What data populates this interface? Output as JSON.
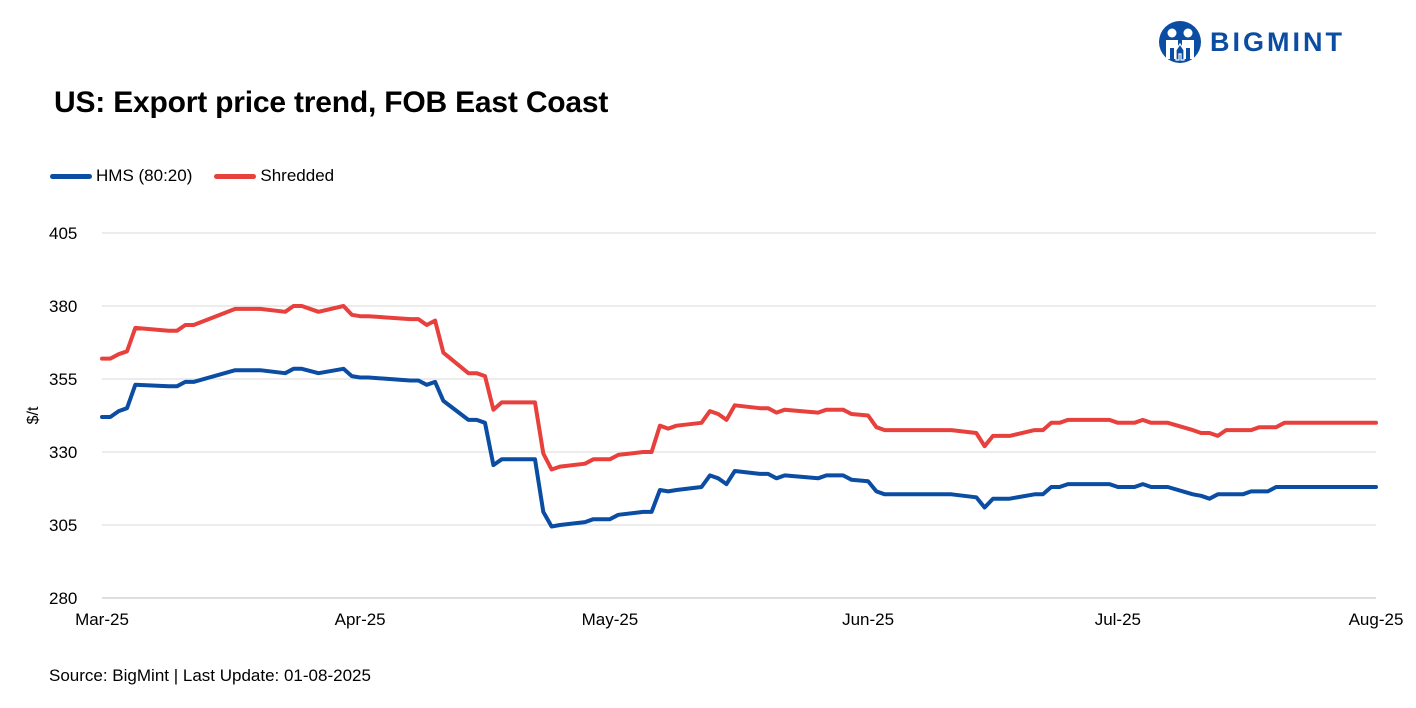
{
  "brand": {
    "name": "BIGMINT",
    "logo_icon": "bigmint-people-logo-icon",
    "color": "#0a4da2"
  },
  "title": "US: Export price trend, FOB East Coast",
  "source": "Source: BigMint | Last Update: 01-08-2025",
  "chart_data": {
    "type": "line",
    "title": "US: Export price trend, FOB East Coast",
    "xlabel": "",
    "ylabel": "$/t",
    "ylim": [
      280,
      405
    ],
    "yticks": [
      280,
      305,
      330,
      355,
      380,
      405
    ],
    "xlim": [
      "2025-03-01",
      "2025-08-01"
    ],
    "xticks": [
      {
        "date": "2025-03-01",
        "label": "Mar-25"
      },
      {
        "date": "2025-04-01",
        "label": "Apr-25"
      },
      {
        "date": "2025-05-01",
        "label": "May-25"
      },
      {
        "date": "2025-06-01",
        "label": "Jun-25"
      },
      {
        "date": "2025-07-01",
        "label": "Jul-25"
      },
      {
        "date": "2025-08-01",
        "label": "Aug-25"
      }
    ],
    "grid": true,
    "legend_position": "top-left",
    "series": [
      {
        "name": "HMS (80:20)",
        "color": "#0a4da2",
        "points": [
          [
            "2025-03-01",
            342
          ],
          [
            "2025-03-02",
            342
          ],
          [
            "2025-03-03",
            344
          ],
          [
            "2025-03-04",
            345
          ],
          [
            "2025-03-05",
            353
          ],
          [
            "2025-03-09",
            352.5
          ],
          [
            "2025-03-10",
            352.5
          ],
          [
            "2025-03-11",
            354
          ],
          [
            "2025-03-12",
            354
          ],
          [
            "2025-03-17",
            358
          ],
          [
            "2025-03-20",
            358
          ],
          [
            "2025-03-23",
            357
          ],
          [
            "2025-03-24",
            358.5
          ],
          [
            "2025-03-25",
            358.5
          ],
          [
            "2025-03-27",
            357
          ],
          [
            "2025-03-30",
            358.5
          ],
          [
            "2025-03-31",
            356
          ],
          [
            "2025-04-01",
            355.5
          ],
          [
            "2025-04-02",
            355.5
          ],
          [
            "2025-04-07",
            354.5
          ],
          [
            "2025-04-08",
            354.5
          ],
          [
            "2025-04-09",
            353
          ],
          [
            "2025-04-10",
            354
          ],
          [
            "2025-04-11",
            347.5
          ],
          [
            "2025-04-14",
            341
          ],
          [
            "2025-04-15",
            341
          ],
          [
            "2025-04-16",
            340
          ],
          [
            "2025-04-17",
            325.5
          ],
          [
            "2025-04-18",
            327.5
          ],
          [
            "2025-04-22",
            327.5
          ],
          [
            "2025-04-23",
            309.5
          ],
          [
            "2025-04-24",
            304.5
          ],
          [
            "2025-04-25",
            305
          ],
          [
            "2025-04-28",
            306
          ],
          [
            "2025-04-29",
            307
          ],
          [
            "2025-05-01",
            307
          ],
          [
            "2025-05-02",
            308.5
          ],
          [
            "2025-05-05",
            309.5
          ],
          [
            "2025-05-06",
            309.5
          ],
          [
            "2025-05-07",
            317
          ],
          [
            "2025-05-08",
            316.5
          ],
          [
            "2025-05-09",
            317
          ],
          [
            "2025-05-12",
            318
          ],
          [
            "2025-05-13",
            322
          ],
          [
            "2025-05-14",
            321
          ],
          [
            "2025-05-15",
            319
          ],
          [
            "2025-05-16",
            323.5
          ],
          [
            "2025-05-19",
            322.5
          ],
          [
            "2025-05-20",
            322.5
          ],
          [
            "2025-05-21",
            321
          ],
          [
            "2025-05-22",
            322
          ],
          [
            "2025-05-26",
            321
          ],
          [
            "2025-05-27",
            322
          ],
          [
            "2025-05-29",
            322
          ],
          [
            "2025-05-30",
            320.5
          ],
          [
            "2025-06-01",
            320
          ],
          [
            "2025-06-02",
            316.5
          ],
          [
            "2025-06-03",
            315.5
          ],
          [
            "2025-06-11",
            315.5
          ],
          [
            "2025-06-14",
            314.5
          ],
          [
            "2025-06-15",
            311
          ],
          [
            "2025-06-16",
            314
          ],
          [
            "2025-06-18",
            314
          ],
          [
            "2025-06-21",
            315.5
          ],
          [
            "2025-06-22",
            315.5
          ],
          [
            "2025-06-23",
            318
          ],
          [
            "2025-06-24",
            318
          ],
          [
            "2025-06-25",
            319
          ],
          [
            "2025-06-30",
            319
          ],
          [
            "2025-07-01",
            318
          ],
          [
            "2025-07-03",
            318
          ],
          [
            "2025-07-04",
            319
          ],
          [
            "2025-07-05",
            318
          ],
          [
            "2025-07-07",
            318
          ],
          [
            "2025-07-10",
            315.5
          ],
          [
            "2025-07-11",
            315
          ],
          [
            "2025-07-12",
            314
          ],
          [
            "2025-07-13",
            315.5
          ],
          [
            "2025-07-16",
            315.5
          ],
          [
            "2025-07-17",
            316.5
          ],
          [
            "2025-07-19",
            316.5
          ],
          [
            "2025-07-20",
            318
          ],
          [
            "2025-08-01",
            318
          ]
        ]
      },
      {
        "name": "Shredded",
        "color": "#e8403c",
        "points": [
          [
            "2025-03-01",
            362
          ],
          [
            "2025-03-02",
            362
          ],
          [
            "2025-03-03",
            363.5
          ],
          [
            "2025-03-04",
            364.5
          ],
          [
            "2025-03-05",
            372.5
          ],
          [
            "2025-03-09",
            371.5
          ],
          [
            "2025-03-10",
            371.5
          ],
          [
            "2025-03-11",
            373.5
          ],
          [
            "2025-03-12",
            373.5
          ],
          [
            "2025-03-17",
            379
          ],
          [
            "2025-03-20",
            379
          ],
          [
            "2025-03-23",
            378
          ],
          [
            "2025-03-24",
            380
          ],
          [
            "2025-03-25",
            380
          ],
          [
            "2025-03-27",
            378
          ],
          [
            "2025-03-30",
            380
          ],
          [
            "2025-03-31",
            377
          ],
          [
            "2025-04-01",
            376.5
          ],
          [
            "2025-04-02",
            376.5
          ],
          [
            "2025-04-07",
            375.5
          ],
          [
            "2025-04-08",
            375.5
          ],
          [
            "2025-04-09",
            373.5
          ],
          [
            "2025-04-10",
            375
          ],
          [
            "2025-04-11",
            364
          ],
          [
            "2025-04-14",
            357
          ],
          [
            "2025-04-15",
            357
          ],
          [
            "2025-04-16",
            356
          ],
          [
            "2025-04-17",
            344.5
          ],
          [
            "2025-04-18",
            347
          ],
          [
            "2025-04-22",
            347
          ],
          [
            "2025-04-23",
            329.5
          ],
          [
            "2025-04-24",
            324
          ],
          [
            "2025-04-25",
            325
          ],
          [
            "2025-04-28",
            326
          ],
          [
            "2025-04-29",
            327.5
          ],
          [
            "2025-05-01",
            327.5
          ],
          [
            "2025-05-02",
            329
          ],
          [
            "2025-05-05",
            330
          ],
          [
            "2025-05-06",
            330
          ],
          [
            "2025-05-07",
            339
          ],
          [
            "2025-05-08",
            338
          ],
          [
            "2025-05-09",
            339
          ],
          [
            "2025-05-12",
            340
          ],
          [
            "2025-05-13",
            344
          ],
          [
            "2025-05-14",
            343
          ],
          [
            "2025-05-15",
            341
          ],
          [
            "2025-05-16",
            346
          ],
          [
            "2025-05-19",
            345
          ],
          [
            "2025-05-20",
            345
          ],
          [
            "2025-05-21",
            343.5
          ],
          [
            "2025-05-22",
            344.5
          ],
          [
            "2025-05-26",
            343.5
          ],
          [
            "2025-05-27",
            344.5
          ],
          [
            "2025-05-29",
            344.5
          ],
          [
            "2025-05-30",
            343
          ],
          [
            "2025-06-01",
            342.5
          ],
          [
            "2025-06-02",
            338.5
          ],
          [
            "2025-06-03",
            337.5
          ],
          [
            "2025-06-11",
            337.5
          ],
          [
            "2025-06-14",
            336.5
          ],
          [
            "2025-06-15",
            332
          ],
          [
            "2025-06-16",
            335.5
          ],
          [
            "2025-06-18",
            335.5
          ],
          [
            "2025-06-21",
            337.5
          ],
          [
            "2025-06-22",
            337.5
          ],
          [
            "2025-06-23",
            340
          ],
          [
            "2025-06-24",
            340
          ],
          [
            "2025-06-25",
            341
          ],
          [
            "2025-06-30",
            341
          ],
          [
            "2025-07-01",
            340
          ],
          [
            "2025-07-03",
            340
          ],
          [
            "2025-07-04",
            341
          ],
          [
            "2025-07-05",
            340
          ],
          [
            "2025-07-07",
            340
          ],
          [
            "2025-07-10",
            337.5
          ],
          [
            "2025-07-11",
            336.5
          ],
          [
            "2025-07-12",
            336.5
          ],
          [
            "2025-07-13",
            335.5
          ],
          [
            "2025-07-14",
            337.5
          ],
          [
            "2025-07-17",
            337.5
          ],
          [
            "2025-07-18",
            338.5
          ],
          [
            "2025-07-20",
            338.5
          ],
          [
            "2025-07-21",
            340
          ],
          [
            "2025-08-01",
            340
          ]
        ]
      }
    ]
  }
}
